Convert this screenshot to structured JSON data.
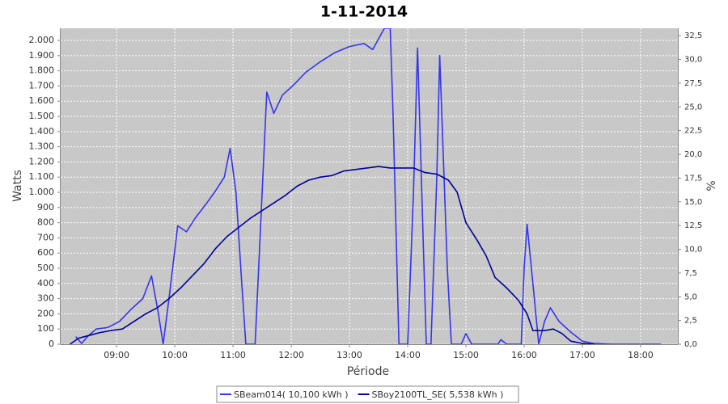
{
  "chart_data": {
    "type": "line",
    "title": "1-11-2014",
    "x_label": "Période",
    "y_label": "Watts",
    "y2_label": "%",
    "xlim": [
      8.04,
      18.64
    ],
    "xticks": [
      {
        "value": 9,
        "label": "09:00"
      },
      {
        "value": 10,
        "label": "10:00"
      },
      {
        "value": 11,
        "label": "11:00"
      },
      {
        "value": 12,
        "label": "12:00"
      },
      {
        "value": 13,
        "label": "13:00"
      },
      {
        "value": 14,
        "label": "14:00"
      },
      {
        "value": 15,
        "label": "15:00"
      },
      {
        "value": 16,
        "label": "16:00"
      },
      {
        "value": 17,
        "label": "17:00"
      },
      {
        "value": 18,
        "label": "18:00"
      }
    ],
    "ylim": [
      0,
      2080
    ],
    "yticks": [
      0,
      100,
      200,
      300,
      400,
      500,
      600,
      700,
      800,
      900,
      {
        "value": 1000,
        "label": "1.000"
      },
      {
        "value": 1100,
        "label": "1.100"
      },
      {
        "value": 1200,
        "label": "1.200"
      },
      {
        "value": 1300,
        "label": "1.300"
      },
      {
        "value": 1400,
        "label": "1.400"
      },
      {
        "value": 1500,
        "label": "1.500"
      },
      {
        "value": 1600,
        "label": "1.600"
      },
      {
        "value": 1700,
        "label": "1.700"
      },
      {
        "value": 1800,
        "label": "1.800"
      },
      {
        "value": 1900,
        "label": "1.900"
      },
      {
        "value": 2000,
        "label": "2.000"
      }
    ],
    "y2lim": [
      0,
      33.28
    ],
    "y2ticks": [
      {
        "value": 0,
        "label": "0,0"
      },
      {
        "value": 2.5,
        "label": "2,5"
      },
      {
        "value": 5,
        "label": "5,0"
      },
      {
        "value": 7.5,
        "label": "7,5"
      },
      {
        "value": 10,
        "label": "10,0"
      },
      {
        "value": 12.5,
        "label": "12,5"
      },
      {
        "value": 15,
        "label": "15,0"
      },
      {
        "value": 17.5,
        "label": "17,5"
      },
      {
        "value": 20,
        "label": "20,0"
      },
      {
        "value": 22.5,
        "label": "22,5"
      },
      {
        "value": 25,
        "label": "25,0"
      },
      {
        "value": 27.5,
        "label": "27,5"
      },
      {
        "value": 30,
        "label": "30,0"
      },
      {
        "value": 32.5,
        "label": "32,5"
      }
    ],
    "grid": true,
    "series": [
      {
        "name": "SBeam014( 10,100 kWh )",
        "color": "#3535ee",
        "x": [
          8.3,
          8.4,
          8.5,
          8.65,
          8.85,
          9.05,
          9.25,
          9.45,
          9.6,
          9.72,
          9.8,
          9.9,
          10.05,
          10.2,
          10.35,
          10.55,
          10.7,
          10.85,
          10.95,
          11.05,
          11.15,
          11.22,
          11.38,
          11.5,
          11.58,
          11.7,
          11.85,
          12.05,
          12.25,
          12.5,
          12.75,
          13.0,
          13.25,
          13.4,
          13.6,
          13.7,
          13.75,
          13.85,
          14.0,
          14.1,
          14.17,
          14.28,
          14.32,
          14.4,
          14.5,
          14.55,
          14.68,
          14.75,
          14.92,
          15.0,
          15.1,
          15.55,
          15.6,
          15.7,
          15.95,
          16.0,
          16.05,
          16.15,
          16.25,
          16.35,
          16.45,
          16.6,
          16.8,
          17.0,
          17.2,
          17.5,
          18.35
        ],
        "values": [
          50,
          5,
          50,
          100,
          110,
          150,
          230,
          300,
          450,
          200,
          0,
          300,
          780,
          740,
          830,
          930,
          1010,
          1100,
          1290,
          1000,
          400,
          0,
          0,
          1000,
          1660,
          1520,
          1640,
          1710,
          1790,
          1860,
          1920,
          1960,
          1980,
          1940,
          2080,
          2080,
          1500,
          0,
          0,
          1000,
          1950,
          500,
          0,
          0,
          1100,
          1900,
          500,
          0,
          0,
          70,
          0,
          0,
          30,
          0,
          0,
          500,
          790,
          400,
          0,
          150,
          240,
          150,
          80,
          20,
          5,
          0,
          0
        ]
      },
      {
        "name": "SBoy2100TL_SE( 5,538 kWh )",
        "color": "#000099",
        "x": [
          8.2,
          8.35,
          8.5,
          8.7,
          8.9,
          9.1,
          9.3,
          9.5,
          9.7,
          9.9,
          10.1,
          10.3,
          10.5,
          10.7,
          10.9,
          11.1,
          11.3,
          11.5,
          11.7,
          11.9,
          12.1,
          12.3,
          12.5,
          12.7,
          12.9,
          13.1,
          13.3,
          13.5,
          13.7,
          13.9,
          14.1,
          14.3,
          14.5,
          14.7,
          14.85,
          15.0,
          15.2,
          15.35,
          15.5,
          15.7,
          15.9,
          16.05,
          16.15,
          16.35,
          16.5,
          16.65,
          16.8,
          17.0,
          17.2
        ],
        "values": [
          0,
          40,
          55,
          75,
          90,
          100,
          150,
          200,
          240,
          300,
          370,
          450,
          530,
          630,
          710,
          770,
          830,
          880,
          930,
          980,
          1040,
          1080,
          1100,
          1110,
          1140,
          1150,
          1160,
          1170,
          1160,
          1160,
          1160,
          1130,
          1120,
          1080,
          1000,
          800,
          680,
          580,
          440,
          370,
          290,
          200,
          90,
          90,
          100,
          70,
          20,
          5,
          0
        ]
      }
    ]
  }
}
